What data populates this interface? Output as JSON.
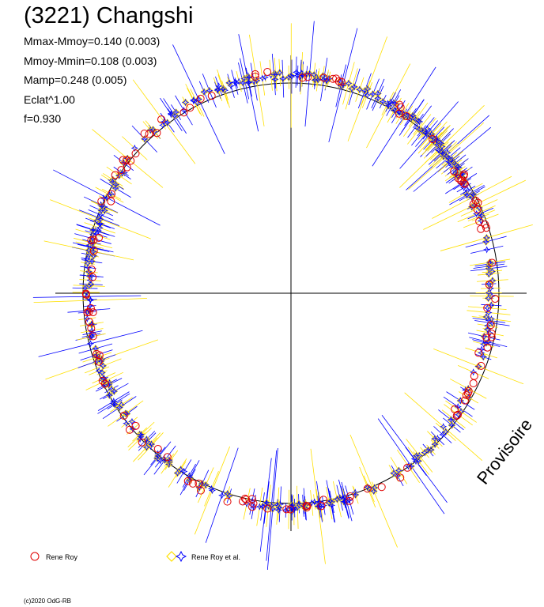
{
  "title": "(3221) Changshi",
  "params": [
    "Mmax-Mmoy=0.140 (0.003)",
    "Mmoy-Mmin=0.108 (0.003)",
    "Mamp=0.248 (0.005)",
    "Eclat^1.00",
    "f=0.930"
  ],
  "watermark": "Provisoire",
  "copyright": "(c)2020 OdG-RB",
  "legend": [
    {
      "label": "Rene Roy",
      "marker": "circle",
      "color": "#e00000"
    },
    {
      "label": "Rene Roy et al.",
      "markers": [
        "diamond",
        "star"
      ],
      "colors": [
        "#ffe000",
        "#0000ff"
      ]
    }
  ],
  "colors": {
    "series1": "#e00000",
    "series2_diamond": "#ffe000",
    "series2_star": "#0000ff",
    "axes": "#000000"
  },
  "chart_data": {
    "type": "scatter",
    "projection": "polar",
    "phase_range": [
      0,
      1
    ],
    "mean_radius": 1.0,
    "amplitude_mmax_mmoy": 0.14,
    "amplitude_mmoy_mmin": 0.108,
    "amplitude_total": 0.248,
    "amplitude_errors": [
      0.003,
      0.003,
      0.005
    ],
    "reference_circle": true,
    "axes_cross": true,
    "series": [
      {
        "name": "Rene Roy",
        "marker": "circle",
        "color": "#e00000",
        "n_points": 120
      },
      {
        "name": "Rene Roy et al.",
        "marker": "diamond+star",
        "color": "#0000ff",
        "n_points": 420
      }
    ]
  }
}
